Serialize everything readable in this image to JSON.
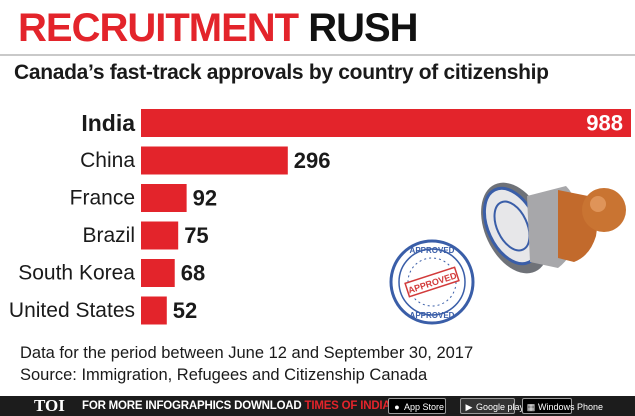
{
  "header": {
    "headline_red": "RECRUITMENT",
    "headline_black": "RUSH",
    "subtitle": "Canada’s fast-track approvals by country of citizenship"
  },
  "chart_data": {
    "type": "bar",
    "orientation": "horizontal",
    "title": "Canada’s fast-track approvals by country of citizenship",
    "categories": [
      "India",
      "China",
      "France",
      "Brazil",
      "South Korea",
      "United States"
    ],
    "values": [
      988,
      296,
      92,
      75,
      68,
      52
    ],
    "data_labels": [
      "988",
      "296",
      "92",
      "75",
      "68",
      "52"
    ],
    "bar_color": "#e3242b",
    "grid": false,
    "legend": "none"
  },
  "stamp": {
    "ink_color": "#3a5ea8",
    "handle_color": "#b8652a",
    "imprint_top": "APPROVED",
    "imprint_bottom": "APPROVED",
    "imprint_center": "APPROVED"
  },
  "notes": {
    "line1": "Data for the period between June 12 and September 30, 2017",
    "line2": "Source: Immigration, Refugees and Citizenship Canada"
  },
  "footer": {
    "logo": "TOI",
    "text_prefix": "FOR MORE  INFOGRAPHICS DOWNLOAD ",
    "text_accent": "TIMES OF INDIA  APP",
    "app_store": {
      "icon": "apple-icon",
      "label": "App Store"
    },
    "google_play": {
      "icon": "google-play-icon",
      "label": "Google play"
    },
    "windows_phone": {
      "icon": "windows-icon",
      "label": "Windows Phone"
    }
  }
}
